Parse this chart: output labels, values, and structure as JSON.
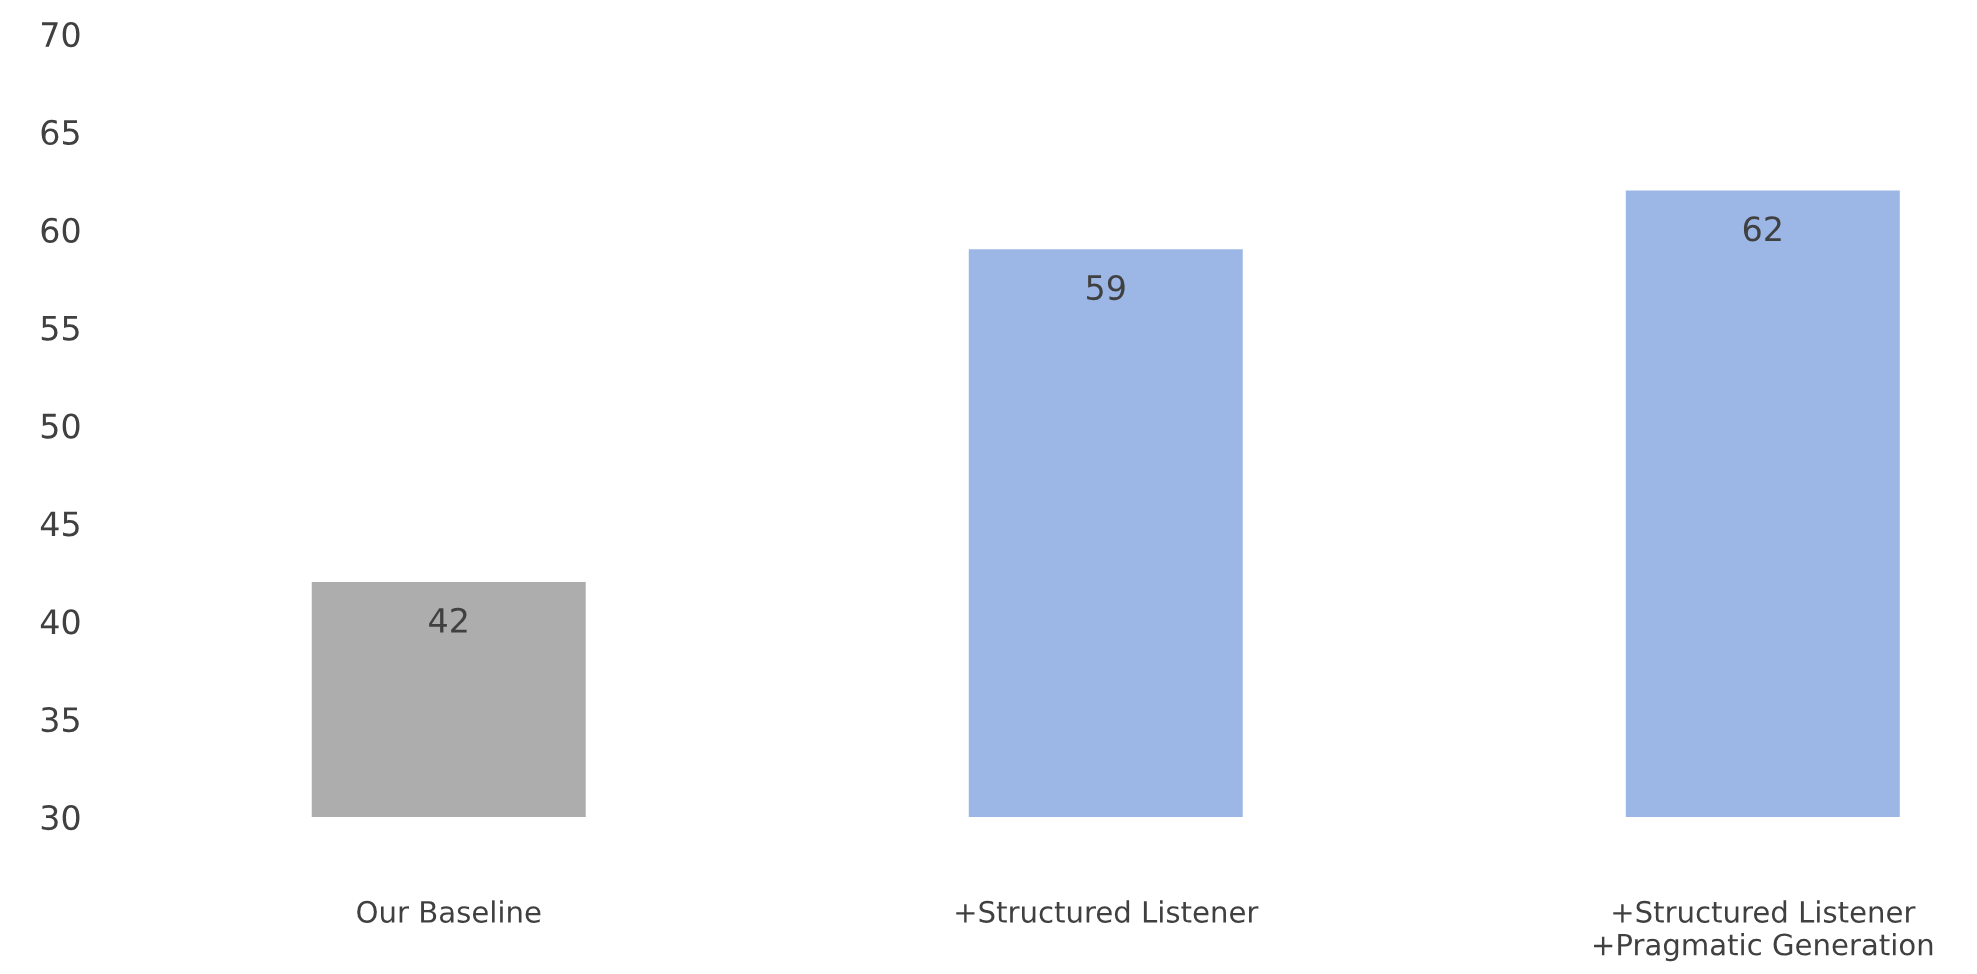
{
  "chart_data": {
    "type": "bar",
    "categories": [
      "Our Baseline",
      "+Structured Listener",
      "+Structured Listener\n+Pragmatic Generation"
    ],
    "values": [
      42,
      59,
      62
    ],
    "colors": [
      "#adadad",
      "#9cb7e5",
      "#9cb7e5"
    ],
    "ylim": [
      30,
      70
    ],
    "yticks": [
      30,
      35,
      40,
      45,
      50,
      55,
      60,
      65,
      70
    ],
    "data_labels": true,
    "grid": false,
    "legend": false
  }
}
